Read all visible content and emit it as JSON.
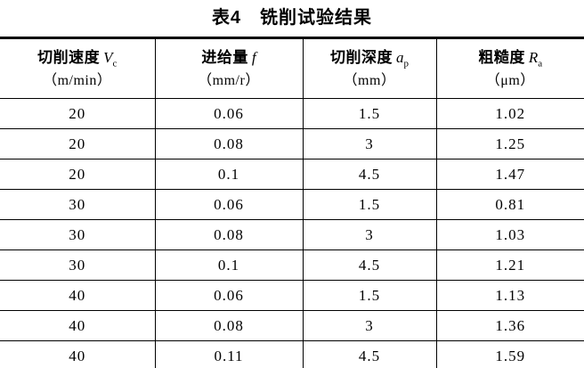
{
  "caption": "表4　铣削试验结果",
  "table": {
    "columns": [
      {
        "label": "切削速度",
        "symbol": "V",
        "subscript": "c",
        "unit": "（m/min）"
      },
      {
        "label": "进给量",
        "symbol": "f",
        "subscript": "",
        "unit": "（mm/r）"
      },
      {
        "label": "切削深度",
        "symbol": "a",
        "subscript": "p",
        "unit": "（mm）"
      },
      {
        "label": "粗糙度",
        "symbol": "R",
        "subscript": "a",
        "unit": "（μm）"
      }
    ],
    "rows": [
      [
        "20",
        "0.06",
        "1.5",
        "1.02"
      ],
      [
        "20",
        "0.08",
        "3",
        "1.25"
      ],
      [
        "20",
        "0.1",
        "4.5",
        "1.47"
      ],
      [
        "30",
        "0.06",
        "1.5",
        "0.81"
      ],
      [
        "30",
        "0.08",
        "3",
        "1.03"
      ],
      [
        "30",
        "0.1",
        "4.5",
        "1.21"
      ],
      [
        "40",
        "0.06",
        "1.5",
        "1.13"
      ],
      [
        "40",
        "0.08",
        "3",
        "1.36"
      ],
      [
        "40",
        "0.11",
        "4.5",
        "1.59"
      ]
    ]
  },
  "chart_data": {
    "type": "table",
    "title": "表4 铣削试验结果",
    "columns": [
      "切削速度 Vc（m/min）",
      "进给量 f（mm/r）",
      "切削深度 ap（mm）",
      "粗糙度 Ra（μm）"
    ],
    "rows": [
      [
        20,
        0.06,
        1.5,
        1.02
      ],
      [
        20,
        0.08,
        3,
        1.25
      ],
      [
        20,
        0.1,
        4.5,
        1.47
      ],
      [
        30,
        0.06,
        1.5,
        0.81
      ],
      [
        30,
        0.08,
        3,
        1.03
      ],
      [
        30,
        0.1,
        4.5,
        1.21
      ],
      [
        40,
        0.06,
        1.5,
        1.13
      ],
      [
        40,
        0.08,
        3,
        1.36
      ],
      [
        40,
        0.11,
        4.5,
        1.59
      ]
    ]
  }
}
